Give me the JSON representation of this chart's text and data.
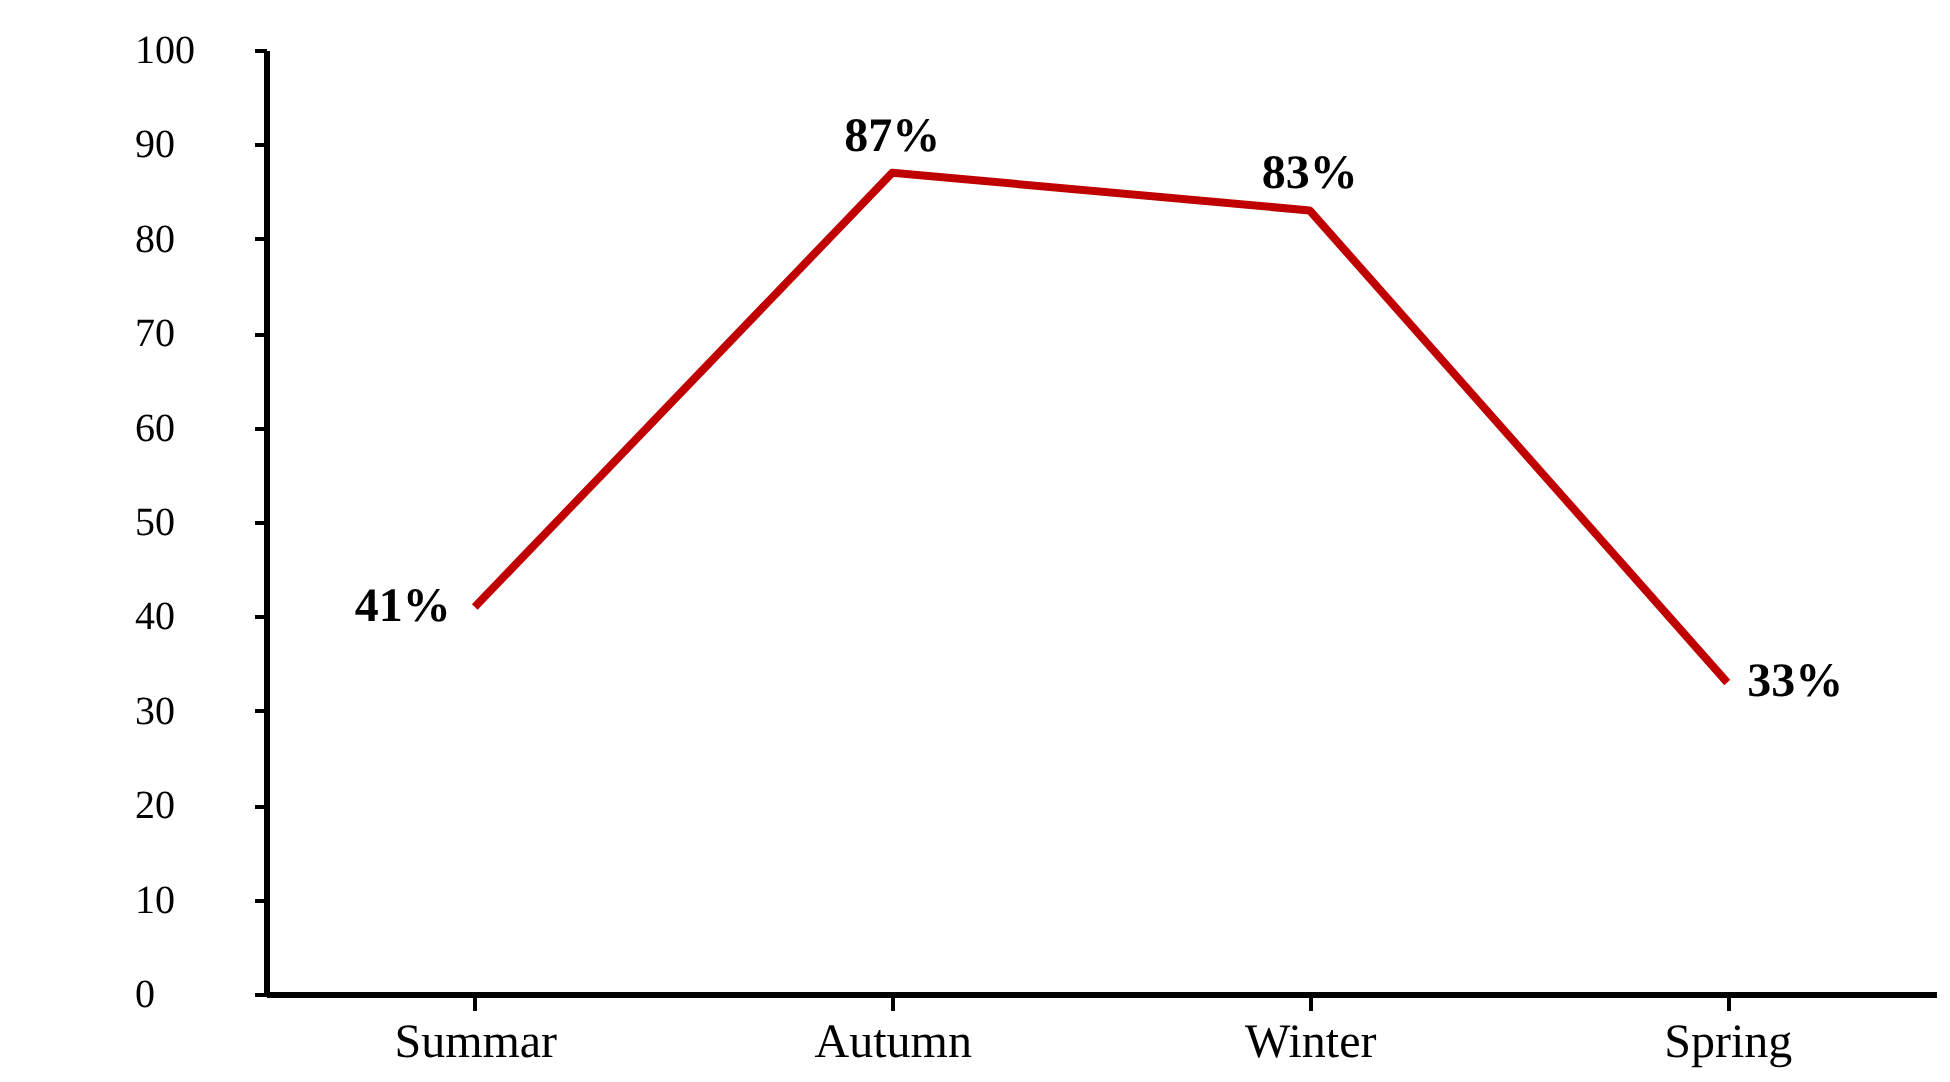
{
  "chart_data": {
    "type": "line",
    "categories": [
      "Summar",
      "Autumn",
      "Winter",
      "Spring"
    ],
    "series": [
      {
        "color": "#c00000",
        "values": [
          41,
          87,
          83,
          33
        ],
        "value_labels": [
          "41%",
          "87%",
          "83%",
          "33%"
        ]
      }
    ],
    "ylim": [
      0,
      100
    ],
    "yticks": [
      0,
      10,
      20,
      30,
      40,
      50,
      60,
      70,
      80,
      90,
      100
    ],
    "grid": false,
    "marker": "none",
    "line_style": "solid"
  }
}
